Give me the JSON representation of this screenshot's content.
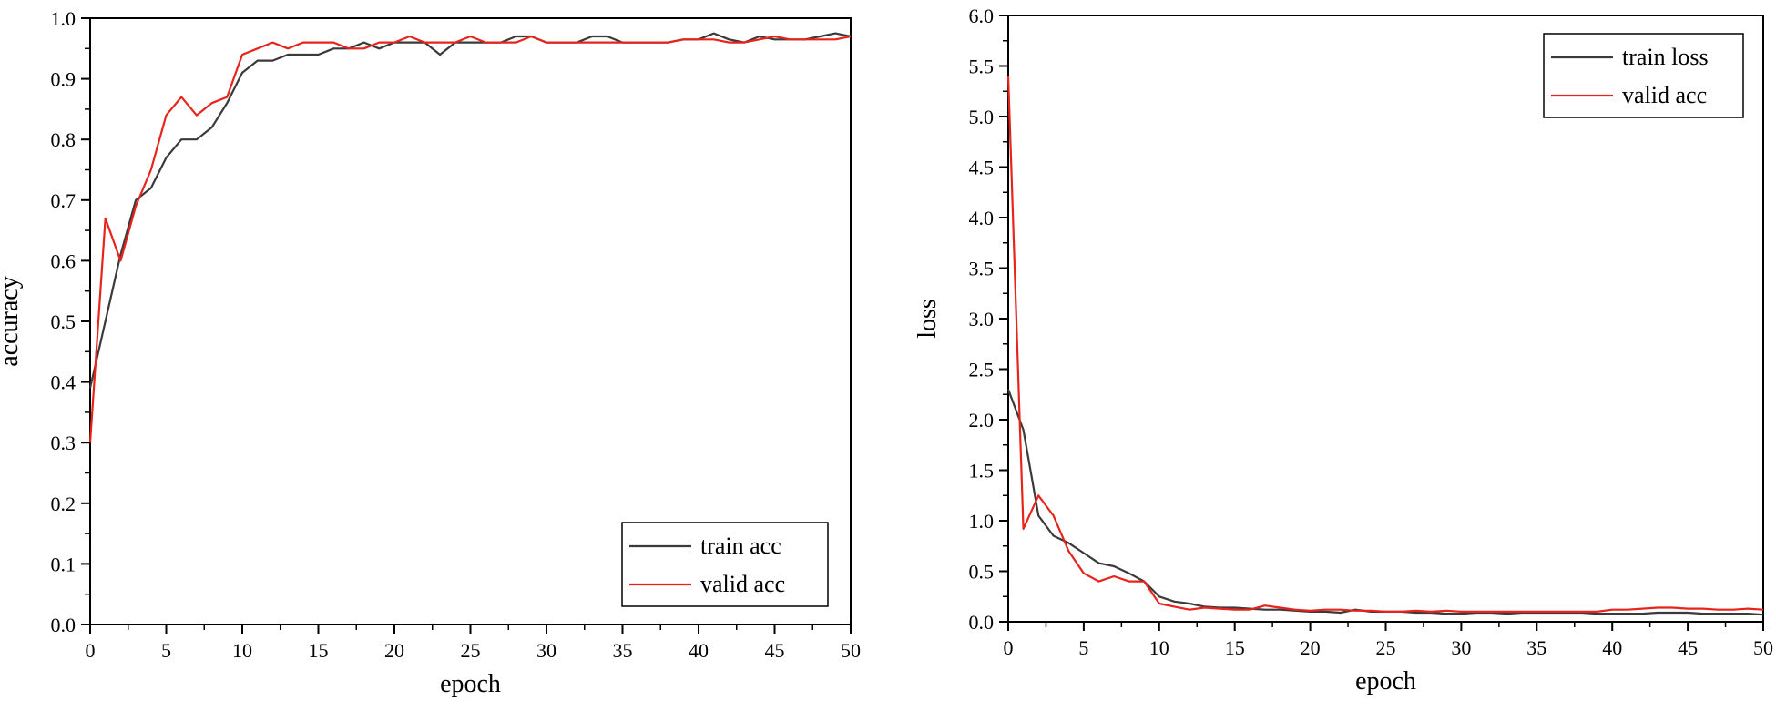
{
  "chart_data": [
    {
      "type": "line",
      "xlabel": "epoch",
      "ylabel": "accuracy",
      "xlim": [
        0,
        50
      ],
      "ylim": [
        0.0,
        1.0
      ],
      "xticks": [
        "0",
        "5",
        "10",
        "15",
        "20",
        "25",
        "30",
        "35",
        "40",
        "45",
        "50"
      ],
      "yticks": [
        "0.0",
        "0.1",
        "0.2",
        "0.3",
        "0.4",
        "0.5",
        "0.6",
        "0.7",
        "0.8",
        "0.9",
        "1.0"
      ],
      "legend_position": "bottom-right",
      "grid": false,
      "x": [
        0,
        1,
        2,
        3,
        4,
        5,
        6,
        7,
        8,
        9,
        10,
        11,
        12,
        13,
        14,
        15,
        16,
        17,
        18,
        19,
        20,
        21,
        22,
        23,
        24,
        25,
        26,
        27,
        28,
        29,
        30,
        31,
        32,
        33,
        34,
        35,
        36,
        37,
        38,
        39,
        40,
        41,
        42,
        43,
        44,
        45,
        46,
        47,
        48,
        49,
        50
      ],
      "series": [
        {
          "name": "train acc",
          "color": "#3a3a3a",
          "values": [
            0.39,
            0.5,
            0.61,
            0.7,
            0.72,
            0.77,
            0.8,
            0.8,
            0.82,
            0.86,
            0.91,
            0.93,
            0.93,
            0.94,
            0.94,
            0.94,
            0.95,
            0.95,
            0.96,
            0.95,
            0.96,
            0.96,
            0.96,
            0.94,
            0.96,
            0.96,
            0.96,
            0.96,
            0.97,
            0.97,
            0.96,
            0.96,
            0.96,
            0.97,
            0.97,
            0.96,
            0.96,
            0.96,
            0.96,
            0.965,
            0.965,
            0.975,
            0.965,
            0.96,
            0.97,
            0.965,
            0.965,
            0.965,
            0.97,
            0.975,
            0.97
          ]
        },
        {
          "name": "valid acc",
          "color": "#e8231c",
          "values": [
            0.3,
            0.67,
            0.6,
            0.69,
            0.75,
            0.84,
            0.87,
            0.84,
            0.86,
            0.87,
            0.94,
            0.95,
            0.96,
            0.95,
            0.96,
            0.96,
            0.96,
            0.95,
            0.95,
            0.96,
            0.96,
            0.97,
            0.96,
            0.96,
            0.96,
            0.97,
            0.96,
            0.96,
            0.96,
            0.97,
            0.96,
            0.96,
            0.96,
            0.96,
            0.96,
            0.96,
            0.96,
            0.96,
            0.96,
            0.965,
            0.965,
            0.965,
            0.96,
            0.96,
            0.965,
            0.97,
            0.965,
            0.965,
            0.965,
            0.965,
            0.97
          ]
        }
      ]
    },
    {
      "type": "line",
      "xlabel": "epoch",
      "ylabel": "loss",
      "xlim": [
        0,
        50
      ],
      "ylim": [
        0.0,
        6.0
      ],
      "xticks": [
        "0",
        "5",
        "10",
        "15",
        "20",
        "25",
        "30",
        "35",
        "40",
        "45",
        "50"
      ],
      "yticks": [
        "0.0",
        "0.5",
        "1.0",
        "1.5",
        "2.0",
        "2.5",
        "3.0",
        "3.5",
        "4.0",
        "4.5",
        "5.0",
        "5.5",
        "6.0"
      ],
      "legend_position": "top-right",
      "grid": false,
      "x": [
        0,
        1,
        2,
        3,
        4,
        5,
        6,
        7,
        8,
        9,
        10,
        11,
        12,
        13,
        14,
        15,
        16,
        17,
        18,
        19,
        20,
        21,
        22,
        23,
        24,
        25,
        26,
        27,
        28,
        29,
        30,
        31,
        32,
        33,
        34,
        35,
        36,
        37,
        38,
        39,
        40,
        41,
        42,
        43,
        44,
        45,
        46,
        47,
        48,
        49,
        50
      ],
      "series": [
        {
          "name": "train loss",
          "color": "#3a3a3a",
          "values": [
            2.3,
            1.9,
            1.05,
            0.85,
            0.78,
            0.68,
            0.58,
            0.55,
            0.48,
            0.4,
            0.25,
            0.2,
            0.18,
            0.15,
            0.14,
            0.14,
            0.13,
            0.12,
            0.12,
            0.11,
            0.1,
            0.1,
            0.09,
            0.12,
            0.1,
            0.1,
            0.1,
            0.09,
            0.09,
            0.08,
            0.08,
            0.09,
            0.09,
            0.08,
            0.09,
            0.09,
            0.09,
            0.09,
            0.09,
            0.08,
            0.08,
            0.08,
            0.08,
            0.09,
            0.09,
            0.09,
            0.08,
            0.08,
            0.08,
            0.08,
            0.07
          ]
        },
        {
          "name": "valid acc",
          "color": "#e8231c",
          "values": [
            5.4,
            0.92,
            1.25,
            1.05,
            0.7,
            0.48,
            0.4,
            0.45,
            0.4,
            0.4,
            0.18,
            0.15,
            0.12,
            0.14,
            0.13,
            0.12,
            0.12,
            0.16,
            0.14,
            0.12,
            0.11,
            0.12,
            0.12,
            0.11,
            0.11,
            0.1,
            0.1,
            0.11,
            0.1,
            0.11,
            0.1,
            0.1,
            0.1,
            0.1,
            0.1,
            0.1,
            0.1,
            0.1,
            0.1,
            0.1,
            0.12,
            0.12,
            0.13,
            0.14,
            0.14,
            0.13,
            0.13,
            0.12,
            0.12,
            0.13,
            0.12
          ]
        }
      ]
    }
  ]
}
